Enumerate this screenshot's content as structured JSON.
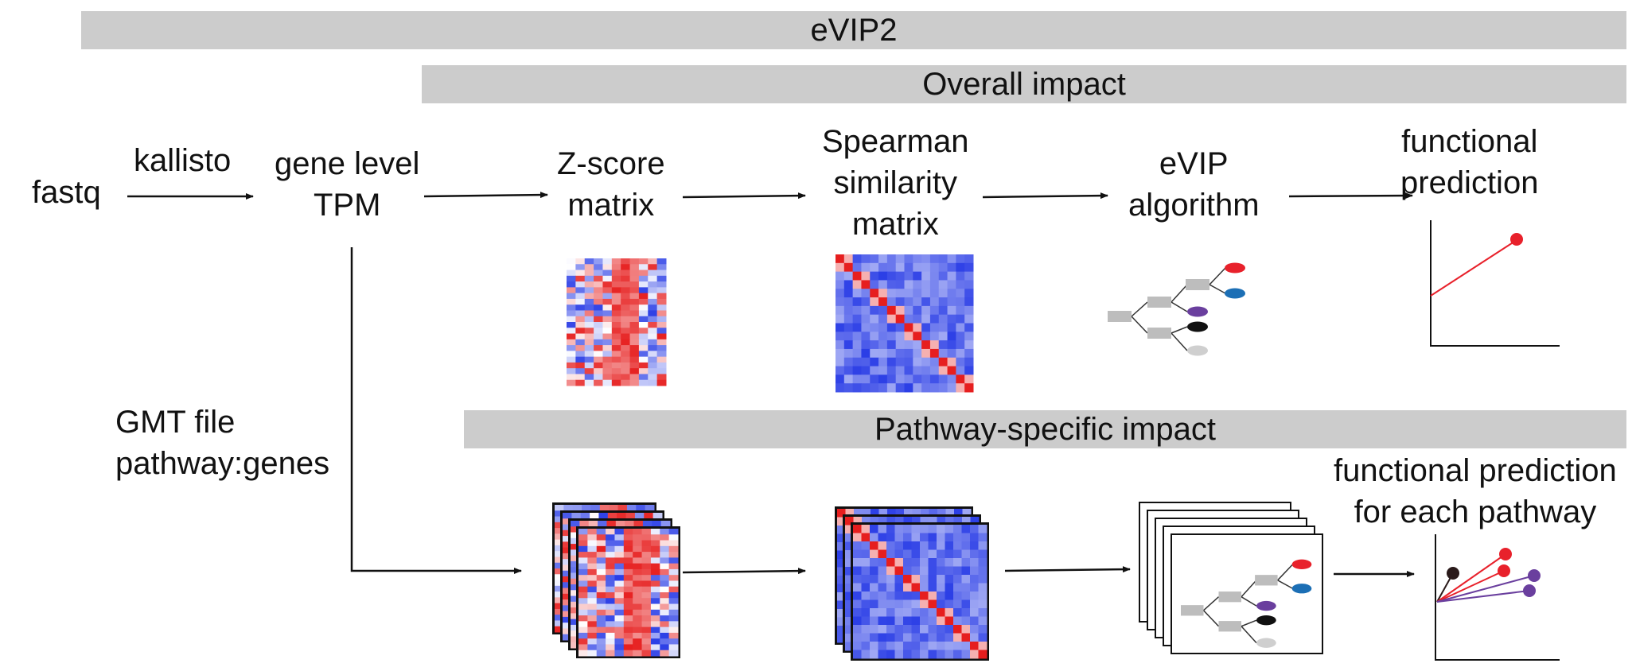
{
  "bars": {
    "top": "eVIP2",
    "overall": "Overall impact",
    "pathway": "Pathway-specific impact"
  },
  "labels": {
    "fastq": "fastq",
    "kallisto": "kallisto",
    "gene_level_1": "gene level",
    "gene_level_2": "TPM",
    "zscore_1": "Z-score",
    "zscore_2": "matrix",
    "spearman_1": "Spearman",
    "spearman_2": "similarity",
    "spearman_3": "matrix",
    "evip_1": "eVIP",
    "evip_2": "algorithm",
    "func_1": "functional",
    "func_2": "prediction",
    "gmt_1": "GMT file",
    "gmt_2": "pathway:genes",
    "func_pw_1": "functional prediction",
    "func_pw_2": "for each pathway"
  },
  "colors": {
    "bar_gray": "#cccccc",
    "red": "#e8212b",
    "blue": "#1c6fb5",
    "purple": "#6a3f9e",
    "black": "#111111",
    "light_gray": "#cfcfcf",
    "heat_red": "#e61e1e",
    "heat_blue": "#2b3ee6"
  },
  "icons": {
    "heatmap": "heatmap-icon",
    "tree": "tree-diagram-icon",
    "plot": "prediction-plot-icon"
  }
}
